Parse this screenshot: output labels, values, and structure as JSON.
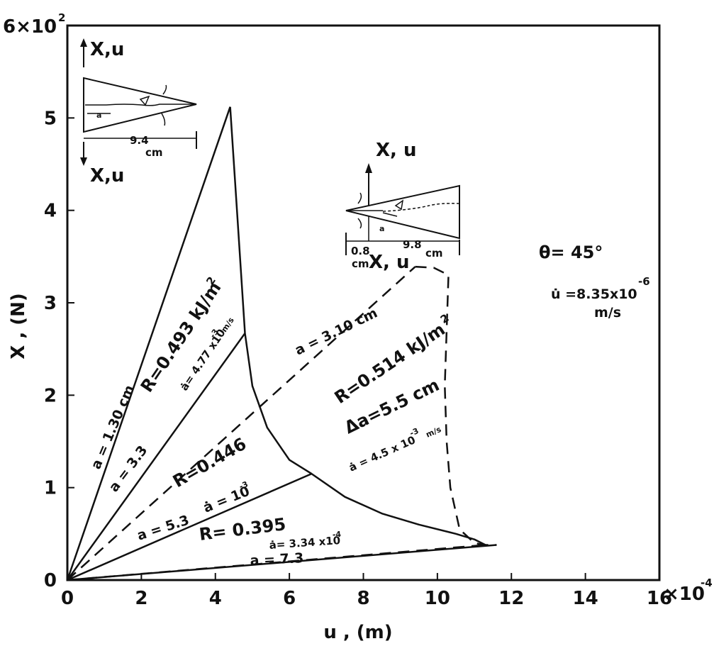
{
  "chart_data": {
    "type": "line",
    "xlabel": "u , (m)",
    "ylabel": "X , (N)",
    "xlim": [
      0,
      16
    ],
    "ylim": [
      0,
      6
    ],
    "x_multiplier": "×10",
    "x_exponent": "-4",
    "y_multiplier": "6×10",
    "y_exponent": "2",
    "x_ticks": [
      "0",
      "2",
      "4",
      "6",
      "8",
      "10",
      "12",
      "14",
      "16"
    ],
    "y_ticks": [
      "0",
      "1",
      "2",
      "3",
      "4",
      "5",
      ""
    ],
    "series": [
      {
        "name": "a = 1.30 cm",
        "style": "solid",
        "x": [
          0,
          4.4
        ],
        "y": [
          0,
          5.12
        ]
      },
      {
        "name": "a = 3.3",
        "style": "solid",
        "x": [
          0,
          4.8
        ],
        "y": [
          0,
          2.67
        ]
      },
      {
        "name": "a = 5.3",
        "style": "solid",
        "x": [
          0,
          6.6
        ],
        "y": [
          0,
          1.15
        ]
      },
      {
        "name": "a = 7.3",
        "style": "solid",
        "x": [
          0,
          11.6
        ],
        "y": [
          0,
          0.38
        ]
      },
      {
        "name": "a = 3.10 cm",
        "style": "dashed",
        "x": [
          0,
          9.4
        ],
        "y": [
          0,
          3.39
        ]
      },
      {
        "name": "R = 0.514 kJ/m2 unloading",
        "style": "dashed",
        "x": [
          9.4,
          9.9,
          10.3,
          10.25,
          10.2,
          10.25,
          10.35,
          10.6,
          11.0,
          11.3,
          11.6
        ],
        "y": [
          3.39,
          3.38,
          3.3,
          2.7,
          2.1,
          1.5,
          1.0,
          0.55,
          0.4,
          0.38,
          0.38
        ]
      },
      {
        "name": "a = 7.3 (dashed)",
        "style": "dashed",
        "x": [
          0,
          11.3
        ],
        "y": [
          0,
          0.38
        ]
      },
      {
        "name": "R envelope",
        "style": "solid",
        "x": [
          4.4,
          4.6,
          4.8,
          5.0,
          5.4,
          6.0,
          6.6,
          7.5,
          8.5,
          9.5,
          10.5,
          11.0,
          11.3
        ],
        "y": [
          5.12,
          3.9,
          2.67,
          2.1,
          1.65,
          1.3,
          1.15,
          0.9,
          0.72,
          0.6,
          0.5,
          0.44,
          0.38
        ]
      }
    ],
    "annotations": {
      "label_a1": "a = 1.30 cm",
      "label_a2": "a = 3.3",
      "label_a3": "a = 5.3",
      "label_a4": "a = 7.3",
      "label_a_dashed": "a = 3.10 cm",
      "r1": "R=0.493 kJ/m",
      "r1_sup": "2",
      "adot1": "ȧ= 4.77 x10",
      "adot1_sup": "-3",
      "adot1_unit": "m/s",
      "r2": "R=0.446",
      "adot2": "ȧ = 10",
      "adot2_sup": "-3",
      "r3": "R= 0.395",
      "adot3": "ȧ= 3.34 x10",
      "adot3_sup": "-4",
      "r4": "R=0.514 kJ/m",
      "r4_sup": "2",
      "delta_a": "Δa=5.5 cm",
      "adot4": "ȧ = 4.5 x 10",
      "adot4_sup": "-3",
      "adot4_unit": "m/s",
      "theta": "θ= 45°",
      "udot": "u̇ =8.35x10",
      "udot_sup": "-6",
      "udot_unit": "m/s"
    },
    "insets": {
      "left": {
        "top_label": "X,u",
        "bottom_label": "X,u",
        "a_label": "a",
        "width_label": "9.4",
        "width_unit": "cm"
      },
      "right": {
        "top_label": "X, u",
        "bottom_label": "X, u",
        "a_label": "a",
        "offset_label": "0.8",
        "offset_unit": "cm",
        "width_label": "9.8",
        "width_unit": "cm"
      }
    }
  }
}
